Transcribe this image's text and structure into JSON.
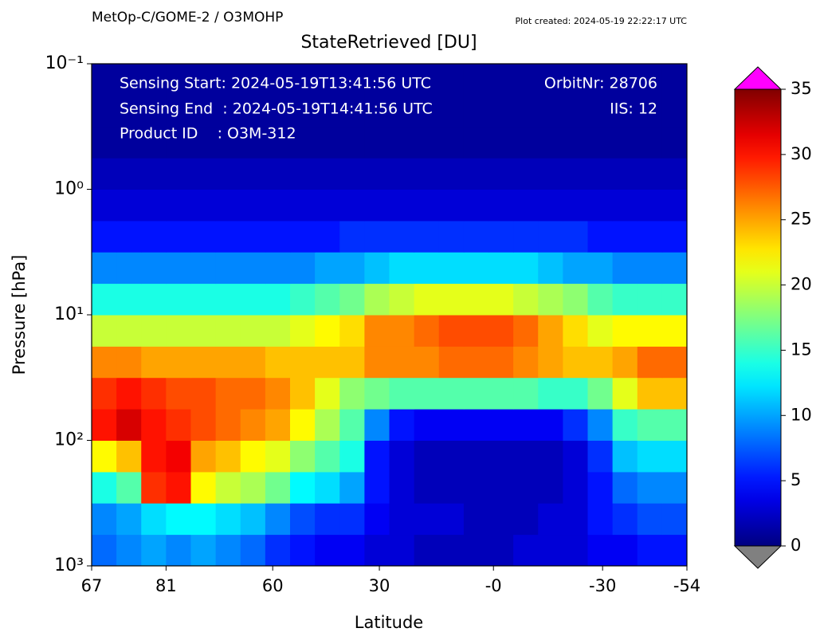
{
  "chart_data": {
    "type": "heatmap",
    "header": "MetOp-C/GOME-2 / O3MOHP",
    "created": "Plot created: 2024-05-19 22:22:17 UTC",
    "title": "StateRetrieved [DU]",
    "annotations_left": [
      "Sensing Start: 2024-05-19T13:41:56 UTC",
      "Sensing End  : 2024-05-19T14:41:56 UTC",
      "Product ID    : O3M-312"
    ],
    "annotations_right": [
      "OrbitNr: 28706",
      "IIS: 12"
    ],
    "x_label": "Latitude",
    "y_label": "Pressure [hPa]",
    "xlim": [
      0,
      24
    ],
    "xticks": [
      {
        "value": 0,
        "label": "67"
      },
      {
        "value": 3,
        "label": "81"
      },
      {
        "value": 7.3,
        "label": "60"
      },
      {
        "value": 11.6,
        "label": "30"
      },
      {
        "value": 16.2,
        "label": "-0"
      },
      {
        "value": 20.6,
        "label": "-30"
      },
      {
        "value": 24,
        "label": "-54"
      }
    ],
    "ylog": true,
    "ylim": [
      1000,
      0.1
    ],
    "yticks": [
      {
        "value": 0.1,
        "label": "10⁻¹"
      },
      {
        "value": 1,
        "label": "10⁰"
      },
      {
        "value": 10,
        "label": "10¹"
      },
      {
        "value": 100,
        "label": "10²"
      },
      {
        "value": 1000,
        "label": "10³"
      }
    ],
    "ybins": [
      1000,
      562,
      316,
      178,
      100,
      56.2,
      31.6,
      17.8,
      10,
      5.62,
      3.16,
      1.78,
      1,
      0.562,
      0.316,
      0.178,
      0.1
    ],
    "z": [
      [
        8,
        9,
        10,
        9,
        10,
        9,
        8,
        6,
        5,
        4,
        4,
        3,
        3,
        2,
        2,
        2,
        2,
        3,
        3,
        3,
        4,
        4,
        5,
        5
      ],
      [
        9,
        10,
        12,
        13,
        13,
        12,
        11,
        9,
        7,
        6,
        6,
        4,
        3,
        3,
        3,
        2,
        2,
        2,
        3,
        3,
        5,
        6,
        7,
        7
      ],
      [
        14,
        16,
        29,
        30,
        22,
        20,
        19,
        17,
        13,
        12,
        10,
        5,
        3,
        2,
        2,
        2,
        2,
        2,
        2,
        3,
        5,
        8,
        9,
        9
      ],
      [
        22,
        24,
        30,
        31,
        25,
        24,
        22,
        21,
        18,
        16,
        14,
        5,
        3,
        2,
        2,
        2,
        2,
        2,
        2,
        3,
        6,
        11,
        12,
        12
      ],
      [
        30,
        32,
        30,
        29,
        28,
        27,
        26,
        25,
        22,
        19,
        16,
        9,
        5,
        4,
        4,
        4,
        4,
        4,
        4,
        6,
        9,
        15,
        16,
        16
      ],
      [
        29,
        30,
        29,
        28,
        28,
        27,
        27,
        26,
        24,
        21,
        18,
        17,
        16,
        16,
        16,
        16,
        16,
        16,
        15,
        15,
        17,
        21,
        24,
        24
      ],
      [
        26,
        26,
        25,
        25,
        25,
        25,
        25,
        24,
        24,
        24,
        24,
        26,
        26,
        26,
        27,
        27,
        27,
        26,
        25,
        24,
        24,
        25,
        27,
        27
      ],
      [
        20,
        20,
        20,
        20,
        20,
        20,
        20,
        20,
        21,
        22,
        23,
        26,
        26,
        27,
        28,
        28,
        28,
        27,
        25,
        23,
        21,
        22,
        22,
        22
      ],
      [
        14,
        14,
        14,
        14,
        14,
        14,
        14,
        14,
        15,
        16,
        17,
        19,
        20,
        21,
        21,
        21,
        21,
        20,
        19,
        18,
        16,
        15,
        15,
        15
      ],
      [
        9,
        9,
        9,
        9,
        9,
        9,
        9,
        9,
        9,
        10,
        10,
        11,
        12,
        12,
        12,
        12,
        12,
        12,
        11,
        10,
        10,
        9,
        9,
        9
      ],
      [
        5,
        5,
        5,
        5,
        5,
        5,
        5,
        5,
        5,
        5,
        6,
        6,
        6,
        6,
        6,
        6,
        6,
        6,
        6,
        6,
        5,
        5,
        5,
        5
      ],
      [
        3,
        3,
        3,
        3,
        3,
        3,
        3,
        3,
        3,
        3,
        3,
        3,
        3,
        3,
        3,
        3,
        3,
        3,
        3,
        3,
        3,
        3,
        3,
        3
      ],
      [
        2,
        2,
        2,
        2,
        2,
        2,
        2,
        2,
        2,
        2,
        2,
        2,
        2,
        2,
        2,
        2,
        2,
        2,
        2,
        2,
        2,
        2,
        2,
        2
      ],
      [
        1,
        1,
        1,
        1,
        1,
        1,
        1,
        1,
        1,
        1,
        1,
        1,
        1,
        1,
        1,
        1,
        1,
        1,
        1,
        1,
        1,
        1,
        1,
        1
      ],
      [
        1,
        1,
        1,
        1,
        1,
        1,
        1,
        1,
        1,
        1,
        1,
        1,
        1,
        1,
        1,
        1,
        1,
        1,
        1,
        1,
        1,
        1,
        1,
        1
      ],
      [
        1,
        1,
        1,
        1,
        1,
        1,
        1,
        1,
        1,
        1,
        1,
        1,
        1,
        1,
        1,
        1,
        1,
        1,
        1,
        1,
        1,
        1,
        1,
        1
      ]
    ],
    "colormap": "jet",
    "zlim": [
      0,
      35
    ],
    "zticks": [
      0,
      5,
      10,
      15,
      20,
      25,
      30,
      35
    ],
    "over_color": "#ff00ff",
    "under_color": "#808080"
  }
}
